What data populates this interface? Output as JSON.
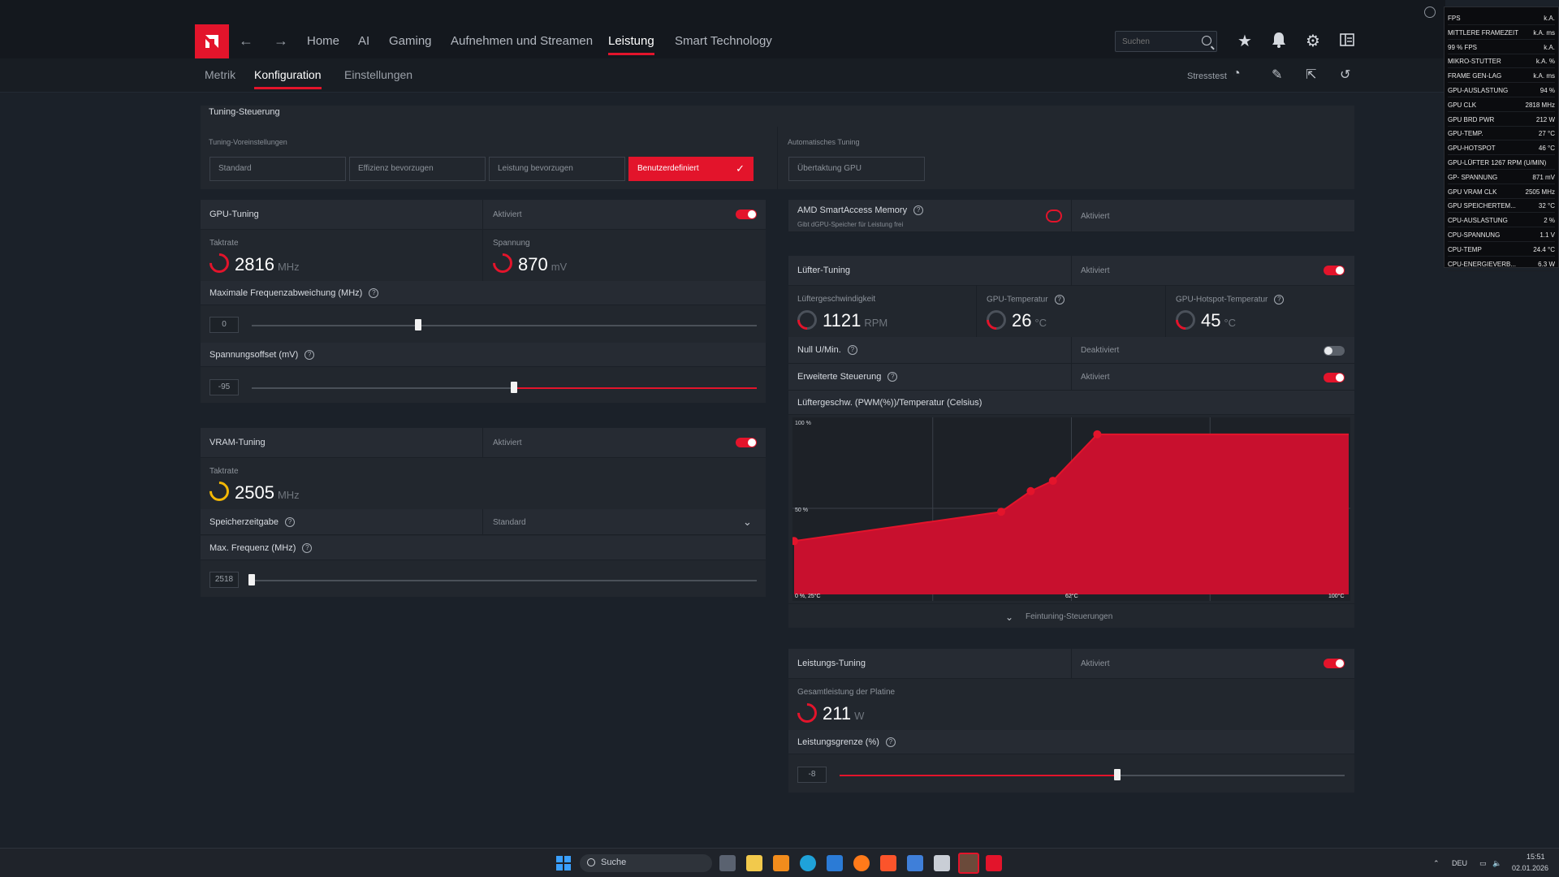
{
  "nav": {
    "items": [
      "Home",
      "AI",
      "Gaming",
      "Aufnehmen und Streamen",
      "Leistung",
      "Smart Technology"
    ],
    "active": "Leistung",
    "search_placeholder": "Suchen"
  },
  "subnav": {
    "items": [
      "Metrik",
      "Konfiguration",
      "Einstellungen"
    ],
    "active": "Konfiguration",
    "stresstest": "Stresstest"
  },
  "tuning_control": {
    "header": "Tuning-Steuerung",
    "presets_label": "Tuning-Voreinstellungen",
    "presets": [
      "Standard",
      "Effizienz bevorzugen",
      "Leistung bevorzugen",
      "Benutzerdefiniert"
    ],
    "active_preset": "Benutzerdefiniert",
    "auto_label": "Automatisches Tuning",
    "auto_button": "Übertaktung GPU"
  },
  "gpu_tuning": {
    "title": "GPU-Tuning",
    "status": "Aktiviert",
    "clock_label": "Taktrate",
    "clock_value": "2816",
    "clock_unit": "MHz",
    "voltage_label": "Spannung",
    "voltage_value": "870",
    "voltage_unit": "mV",
    "freq_dev_label": "Maximale Frequenzabweichung (MHz)",
    "freq_dev_value": "0",
    "freq_dev_fraction": 0.33,
    "volt_offset_label": "Spannungsoffset (mV)",
    "volt_offset_value": "-95",
    "volt_offset_fraction": 0.52
  },
  "vram_tuning": {
    "title": "VRAM-Tuning",
    "status": "Aktiviert",
    "clock_label": "Taktrate",
    "clock_value": "2505",
    "clock_unit": "MHz",
    "timing_label": "Speicherzeitgabe",
    "timing_value": "Standard",
    "max_freq_label": "Max. Frequenz (MHz)",
    "max_freq_value": "2518",
    "max_freq_fraction": 0.0
  },
  "sam": {
    "title": "AMD SmartAccess Memory",
    "subtitle": "Gibt dGPU-Speicher für Leistung frei",
    "status": "Aktiviert"
  },
  "fan_tuning": {
    "title": "Lüfter-Tuning",
    "status": "Aktiviert",
    "speed_label": "Lüftergeschwindigkeit",
    "speed_value": "1121",
    "speed_unit": "RPM",
    "gpu_temp_label": "GPU-Temperatur",
    "gpu_temp_value": "26",
    "gpu_temp_unit": "°C",
    "hotspot_label": "GPU-Hotspot-Temperatur",
    "hotspot_value": "45",
    "hotspot_unit": "°C",
    "zero_rpm_label": "Null U/Min.",
    "zero_rpm_status": "Deaktiviert",
    "advanced_label": "Erweiterte Steuerung",
    "advanced_status": "Aktiviert",
    "curve_label": "Lüftergeschw. (PWM(%))/Temperatur (Celsius)",
    "fine_tuning": "Feintuning-Steuerungen"
  },
  "chart_data": {
    "type": "area",
    "x": [
      25,
      53,
      57,
      60,
      66,
      100
    ],
    "y": [
      31,
      48,
      60,
      66,
      93,
      93
    ],
    "xlim": [
      25,
      100
    ],
    "ylim": [
      0,
      100
    ],
    "tick_labels": {
      "y_top": "100 %",
      "y_mid": "50 %",
      "x_left": "0 %, 25°C",
      "x_mid": "62°C",
      "x_right": "100°C"
    },
    "fill_color": "#c8102e",
    "point_color": "#e3142b"
  },
  "power_tuning": {
    "title": "Leistungs-Tuning",
    "status": "Aktiviert",
    "board_power_label": "Gesamtleistung der Platine",
    "board_power_value": "211",
    "board_power_unit": "W",
    "limit_label": "Leistungsgrenze (%)",
    "limit_value": "-8",
    "limit_fraction": 0.55
  },
  "osd": [
    [
      "FPS",
      "k.A."
    ],
    [
      "MITTLERE FRAMEZEIT",
      "k.A. ms"
    ],
    [
      "99 % FPS",
      "k.A."
    ],
    [
      "MIKRO-STUTTER",
      "k.A. %"
    ],
    [
      "FRAME GEN-LAG",
      "k.A. ms"
    ],
    [
      "GPU-AUSLASTUNG",
      "94 %"
    ],
    [
      "GPU CLK",
      "2818 MHz"
    ],
    [
      "GPU BRD PWR",
      "212 W"
    ],
    [
      "GPU-TEMP.",
      "27 °C"
    ],
    [
      "GPU-HOTSPOT",
      "46 °C"
    ],
    [
      "GPU-LÜFTER 1267 RPM (U/MIN)",
      ""
    ],
    [
      "GP- SPANNUNG",
      "871 mV"
    ],
    [
      "GPU VRAM CLK",
      "2505 MHz"
    ],
    [
      "GPU SPEICHERTEM...",
      "32 °C"
    ],
    [
      "CPU-AUSLASTUNG",
      "2 %"
    ],
    [
      "CPU-SPANNUNG",
      "1.1 V"
    ],
    [
      "CPU-TEMP",
      "24.4 °C"
    ],
    [
      "CPU-ENERGIEVERB...",
      "6.3 W"
    ]
  ],
  "taskbar": {
    "search": "Suche",
    "lang": "DEU",
    "time": "15:51",
    "date": "02.01.2026"
  },
  "colors": {
    "accent": "#e3142b",
    "background": "#1b2129",
    "panel": "#22272e"
  }
}
